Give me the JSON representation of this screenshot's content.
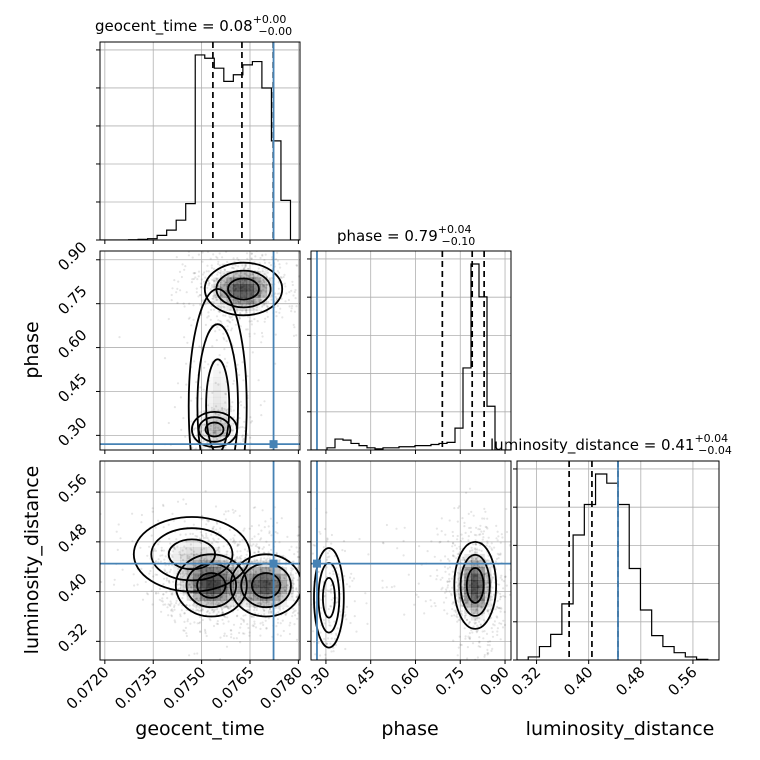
{
  "chart_data": {
    "type": "corner",
    "parameters": [
      "geocent_time",
      "phase",
      "luminosity_distance"
    ],
    "truths": {
      "geocent_time": 0.07723,
      "phase": 0.27,
      "luminosity_distance": 0.445
    },
    "colors": {
      "truth": "#4682b4",
      "hist": "#000000",
      "grid": "#b0b0b0",
      "density": "#000000"
    },
    "grid": true,
    "marginals": [
      {
        "name": "geocent_time",
        "title": {
          "base": "geocent_time = 0.08",
          "plus": "+0.00",
          "minus": "−0.00"
        },
        "xlim": [
          0.07185,
          0.07805
        ],
        "ticks": [
          "0.0720",
          "0.0735",
          "0.0750",
          "0.0765",
          "0.0780"
        ],
        "tick_values": [
          0.072,
          0.0735,
          0.075,
          0.0765,
          0.078
        ],
        "quantiles": [
          0.07535,
          0.07625,
          0.07722
        ],
        "hist_values": [
          0,
          0,
          0,
          0.5,
          1,
          2,
          7,
          15,
          30,
          55,
          280,
          275,
          260,
          240,
          250,
          265,
          270,
          230,
          150,
          60,
          0
        ]
      },
      {
        "name": "phase",
        "title": {
          "base": "phase = 0.79",
          "plus": "+0.04",
          "minus": "−0.10"
        },
        "xlim": [
          0.25,
          0.92
        ],
        "ticks": [
          "0.30",
          "0.45",
          "0.60",
          "0.75",
          "0.90"
        ],
        "tick_values": [
          0.3,
          0.45,
          0.6,
          0.75,
          0.9
        ],
        "quantiles": [
          0.69,
          0.79,
          0.83
        ],
        "hist_values": [
          0,
          0,
          4,
          20,
          18,
          12,
          8,
          4,
          2,
          4,
          4,
          6,
          6,
          8,
          8,
          10,
          12,
          14,
          40,
          150,
          340,
          280,
          80,
          0,
          0
        ]
      },
      {
        "name": "luminosity_distance",
        "title": {
          "base": "luminosity_distance = 0.41",
          "plus": "+0.04",
          "minus": "−0.04"
        },
        "xlim": [
          0.29,
          0.6
        ],
        "ticks": [
          "0.32",
          "0.40",
          "0.48",
          "0.56"
        ],
        "tick_values": [
          0.32,
          0.4,
          0.48,
          0.56
        ],
        "quantiles": [
          0.37,
          0.405,
          0.445
        ],
        "hist_values": [
          0,
          5,
          22,
          42,
          92,
          205,
          255,
          305,
          290,
          255,
          150,
          82,
          40,
          22,
          12,
          5,
          1,
          0
        ]
      }
    ],
    "pairs": [
      {
        "x": "geocent_time",
        "y": "phase",
        "ylim": [
          0.25,
          0.93
        ],
        "yticks": [
          "0.30",
          "0.45",
          "0.60",
          "0.75",
          "0.90"
        ],
        "ytick_values": [
          0.3,
          0.45,
          0.6,
          0.75,
          0.9
        ]
      },
      {
        "x": "geocent_time",
        "y": "luminosity_distance",
        "ylim": [
          0.29,
          0.61
        ],
        "yticks": [
          "0.32",
          "0.40",
          "0.48",
          "0.56"
        ],
        "ytick_values": [
          0.32,
          0.4,
          0.48,
          0.56
        ]
      },
      {
        "x": "phase",
        "y": "luminosity_distance",
        "ylim": [
          0.29,
          0.61
        ]
      }
    ]
  }
}
